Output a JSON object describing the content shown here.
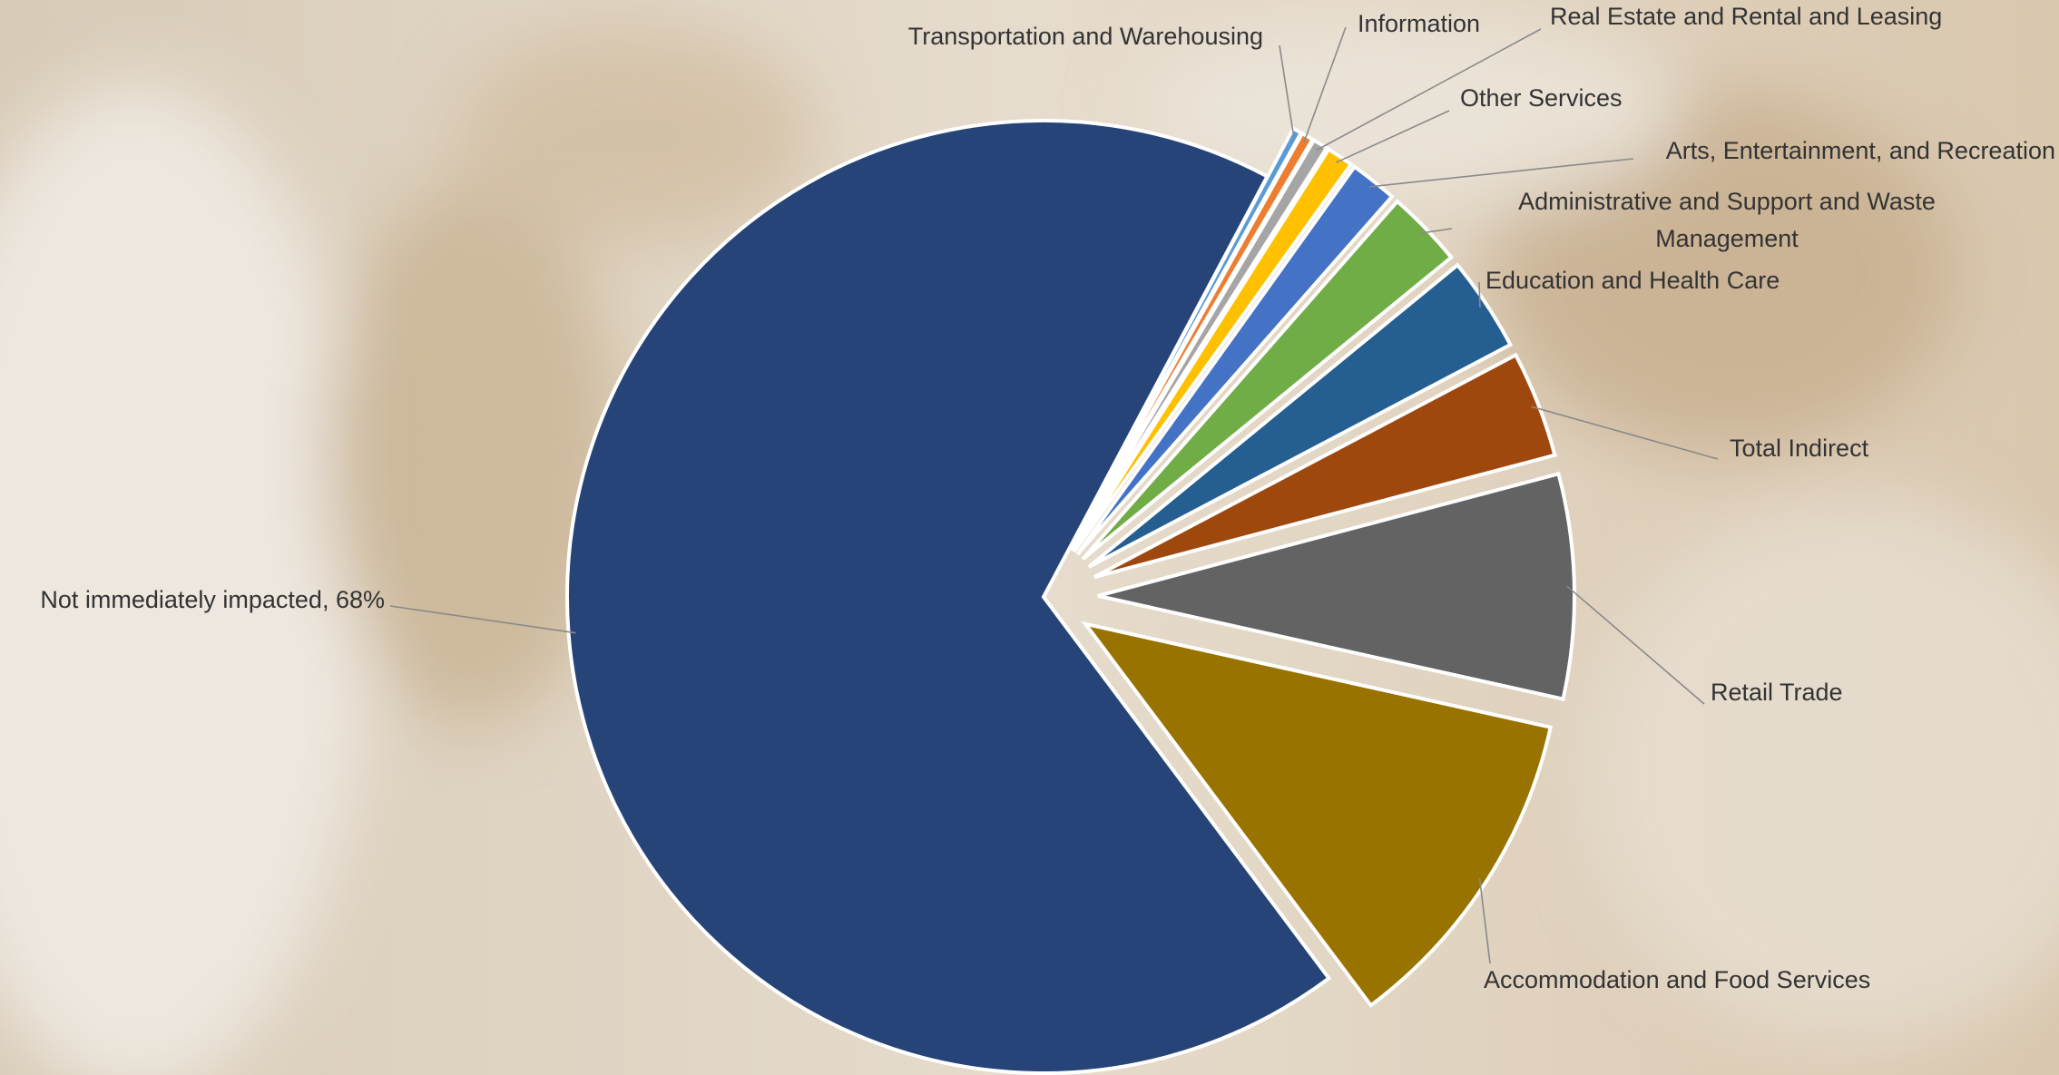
{
  "chart_data": {
    "type": "pie",
    "categories": [
      "Transportation and Warehousing",
      "Information",
      "Real Estate and Rental and Leasing",
      "Other Services",
      "Arts, Entertainment, and Recreation",
      "Administrative and Support and Waste Management",
      "Education and Health Care",
      "Total Indirect",
      "Retail Trade",
      "Accommodation and Food Services",
      "Not immediately impacted"
    ],
    "values": [
      0.3,
      0.4,
      0.5,
      0.9,
      1.6,
      2.6,
      3.2,
      3.6,
      7.6,
      11.3,
      68
    ],
    "value_labels": [
      null,
      null,
      null,
      null,
      null,
      null,
      null,
      null,
      null,
      null,
      "Not immediately impacted, 68%"
    ],
    "colors": [
      "#5b9bd5",
      "#ed7d31",
      "#a5a5a5",
      "#ffc000",
      "#4472c4",
      "#70ad47",
      "#255e91",
      "#9e480e",
      "#636363",
      "#997300",
      "#264478"
    ]
  }
}
